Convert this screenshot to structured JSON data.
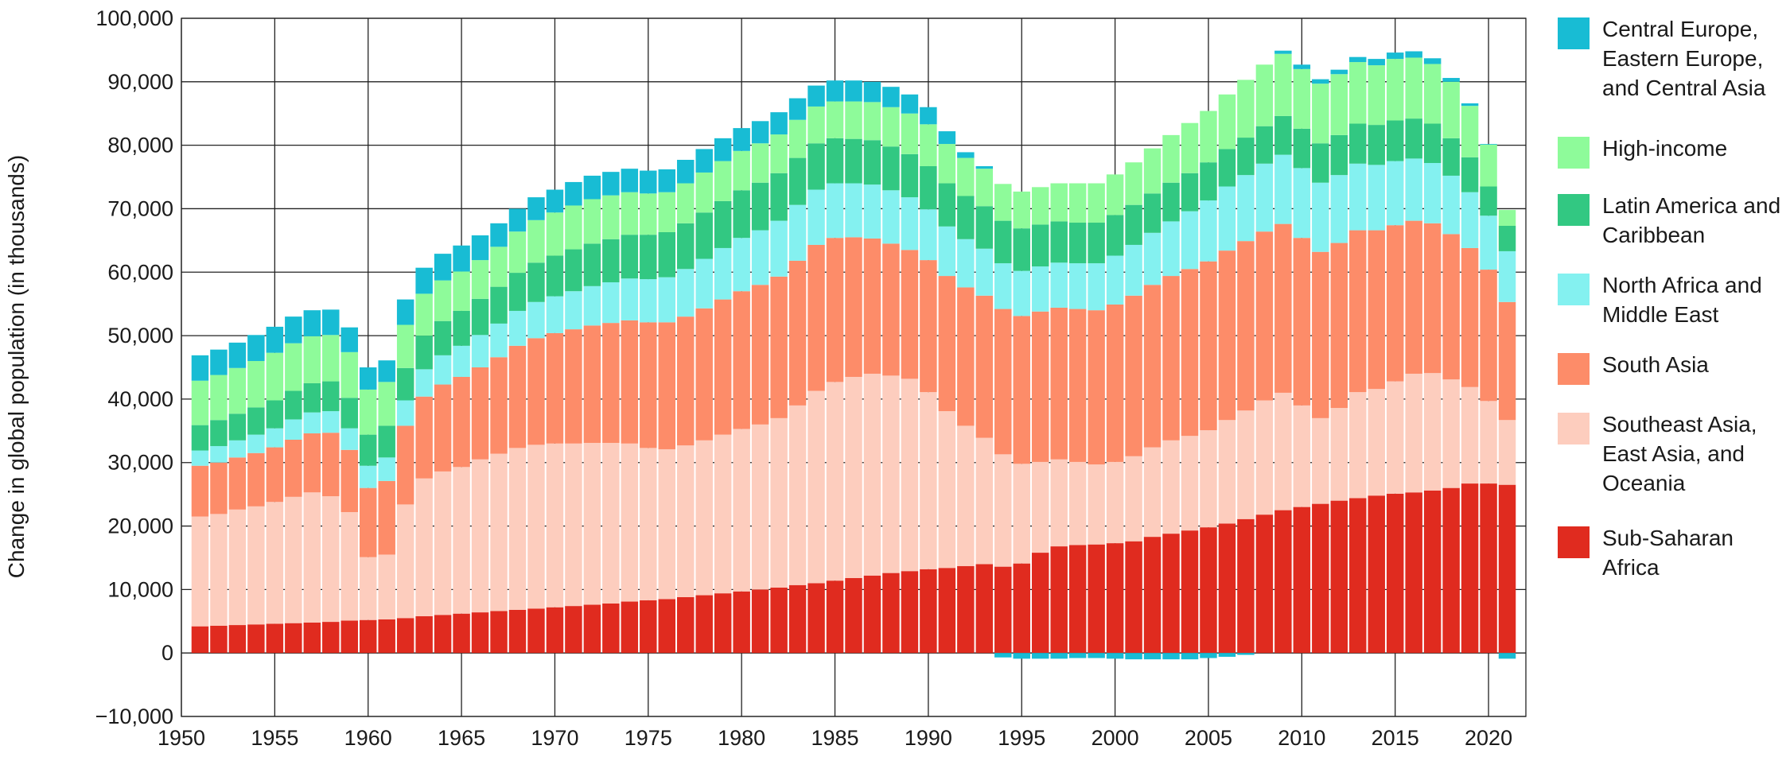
{
  "chart_data": {
    "type": "bar",
    "stacked": true,
    "title": "",
    "xlabel": "",
    "ylabel": "Change in global population (in thousands)",
    "ylim": [
      -10000,
      100000
    ],
    "yticks": [
      -10000,
      0,
      10000,
      20000,
      30000,
      40000,
      50000,
      60000,
      70000,
      80000,
      90000,
      100000
    ],
    "ytick_labels": [
      "−10,000",
      "0",
      "10,000",
      "20,000",
      "30,000",
      "40,000",
      "50,000",
      "60,000",
      "70,000",
      "80,000",
      "90,000",
      "100,000"
    ],
    "xlim": [
      1950,
      2022
    ],
    "xticks": [
      1950,
      1955,
      1960,
      1965,
      1970,
      1975,
      1980,
      1985,
      1990,
      1995,
      2000,
      2005,
      2010,
      2015,
      2020
    ],
    "grid": true,
    "legend_position": "right",
    "categories": [
      1951,
      1952,
      1953,
      1954,
      1955,
      1956,
      1957,
      1958,
      1959,
      1960,
      1961,
      1962,
      1963,
      1964,
      1965,
      1966,
      1967,
      1968,
      1969,
      1970,
      1971,
      1972,
      1973,
      1974,
      1975,
      1976,
      1977,
      1978,
      1979,
      1980,
      1981,
      1982,
      1983,
      1984,
      1985,
      1986,
      1987,
      1988,
      1989,
      1990,
      1991,
      1992,
      1993,
      1994,
      1995,
      1996,
      1997,
      1998,
      1999,
      2000,
      2001,
      2002,
      2003,
      2004,
      2005,
      2006,
      2007,
      2008,
      2009,
      2010,
      2011,
      2012,
      2013,
      2014,
      2015,
      2016,
      2017,
      2018,
      2019,
      2020,
      2021
    ],
    "series": [
      {
        "name": "Sub-Saharan Africa",
        "color": "#e02b1f",
        "values": [
          4200,
          4300,
          4400,
          4500,
          4600,
          4700,
          4800,
          4900,
          5100,
          5200,
          5300,
          5500,
          5800,
          6000,
          6200,
          6400,
          6600,
          6800,
          7000,
          7200,
          7400,
          7600,
          7800,
          8100,
          8300,
          8500,
          8800,
          9100,
          9400,
          9700,
          10000,
          10300,
          10700,
          11000,
          11400,
          11800,
          12200,
          12600,
          12900,
          13200,
          13400,
          13700,
          14000,
          13600,
          14100,
          15800,
          16800,
          17000,
          17100,
          17300,
          17600,
          18300,
          18800,
          19300,
          19800,
          20400,
          21100,
          21800,
          22500,
          23000,
          23500,
          24000,
          24400,
          24800,
          25100,
          25300,
          25600,
          26000,
          26700,
          26700,
          26500
        ]
      },
      {
        "name": "Southeast Asia, East Asia, and Oceania",
        "color": "#fdcdbe",
        "values": [
          17300,
          17600,
          18200,
          18600,
          19200,
          19900,
          20500,
          19800,
          17100,
          9900,
          10200,
          17900,
          21700,
          22600,
          23100,
          24100,
          24800,
          25500,
          25800,
          25800,
          25600,
          25500,
          25300,
          24900,
          24000,
          23600,
          23900,
          24400,
          25000,
          25600,
          26000,
          26700,
          28300,
          30300,
          31300,
          31700,
          31800,
          31100,
          30300,
          27900,
          24700,
          22100,
          19900,
          17700,
          15700,
          14300,
          13700,
          13100,
          12600,
          12800,
          13400,
          14100,
          14700,
          14900,
          15300,
          16300,
          17100,
          18000,
          18500,
          16000,
          13500,
          14600,
          16700,
          16800,
          17700,
          18700,
          18500,
          17100,
          15200,
          13000,
          10200
        ]
      },
      {
        "name": "South Asia",
        "color": "#fd8c69",
        "values": [
          8000,
          8100,
          8200,
          8400,
          8600,
          9000,
          9300,
          10000,
          9800,
          10900,
          11600,
          12400,
          12900,
          13700,
          14200,
          14500,
          15200,
          16100,
          16800,
          17400,
          18000,
          18500,
          18900,
          19400,
          19800,
          20000,
          20300,
          20800,
          21300,
          21700,
          22000,
          22300,
          22800,
          23000,
          22700,
          22000,
          21300,
          20800,
          20300,
          20800,
          21300,
          21800,
          22400,
          22900,
          23300,
          23700,
          23900,
          24100,
          24300,
          24800,
          25300,
          25600,
          25900,
          26300,
          26600,
          26700,
          26700,
          26600,
          26600,
          26400,
          26200,
          26000,
          25500,
          25000,
          24600,
          24100,
          23600,
          22900,
          21900,
          20700,
          18600
        ]
      },
      {
        "name": "North Africa and Middle East",
        "color": "#84f1f0",
        "values": [
          2400,
          2600,
          2700,
          2900,
          3000,
          3200,
          3300,
          3400,
          3400,
          3500,
          3700,
          4000,
          4300,
          4600,
          4900,
          5100,
          5300,
          5500,
          5700,
          5800,
          6000,
          6200,
          6400,
          6600,
          6800,
          7100,
          7500,
          7800,
          8100,
          8400,
          8600,
          8800,
          8800,
          8700,
          8600,
          8500,
          8500,
          8400,
          8300,
          8000,
          7800,
          7600,
          7400,
          7200,
          7100,
          7100,
          7100,
          7200,
          7400,
          7700,
          8000,
          8200,
          8600,
          9100,
          9600,
          10100,
          10400,
          10700,
          10900,
          11000,
          10900,
          10700,
          10500,
          10300,
          10100,
          9800,
          9500,
          9200,
          8800,
          8500,
          8000
        ]
      },
      {
        "name": "Latin America and Caribbean",
        "color": "#32c882",
        "values": [
          4000,
          4100,
          4200,
          4300,
          4400,
          4500,
          4600,
          4700,
          4800,
          4900,
          5000,
          5100,
          5300,
          5400,
          5500,
          5700,
          5800,
          6000,
          6200,
          6400,
          6600,
          6700,
          6800,
          6900,
          7000,
          7100,
          7200,
          7300,
          7400,
          7500,
          7500,
          7500,
          7400,
          7300,
          7100,
          7000,
          7000,
          6900,
          6800,
          6800,
          6800,
          6800,
          6700,
          6700,
          6700,
          6600,
          6500,
          6400,
          6400,
          6400,
          6300,
          6200,
          6100,
          6000,
          6000,
          5900,
          5900,
          5900,
          6100,
          6200,
          6200,
          6300,
          6300,
          6300,
          6400,
          6300,
          6200,
          5900,
          5500,
          4600,
          4000
        ]
      },
      {
        "name": "High-income",
        "color": "#8efb9a",
        "values": [
          7000,
          7100,
          7200,
          7300,
          7500,
          7500,
          7400,
          7300,
          7200,
          7100,
          6900,
          6800,
          6600,
          6400,
          6200,
          6100,
          6300,
          6500,
          6700,
          6800,
          6900,
          7000,
          6900,
          6700,
          6500,
          6300,
          6300,
          6300,
          6300,
          6200,
          6200,
          6100,
          6000,
          5800,
          5800,
          5900,
          6000,
          6200,
          6400,
          6600,
          6200,
          6000,
          5900,
          5800,
          5800,
          5900,
          6000,
          6200,
          6200,
          6400,
          6700,
          7100,
          7500,
          7900,
          8100,
          8600,
          9100,
          9700,
          9800,
          9400,
          9400,
          9600,
          9700,
          9400,
          9700,
          9600,
          9400,
          8900,
          8100,
          6600,
          2500
        ]
      },
      {
        "name": "Central Europe, Eastern Europe, and Central Asia",
        "color": "#18bcd4",
        "values": [
          4000,
          4000,
          4000,
          4100,
          4100,
          4200,
          4100,
          4000,
          3900,
          3500,
          3400,
          4000,
          4100,
          4200,
          4100,
          3900,
          3700,
          3600,
          3600,
          3600,
          3700,
          3700,
          3700,
          3700,
          3600,
          3600,
          3700,
          3700,
          3600,
          3600,
          3500,
          3500,
          3400,
          3300,
          3300,
          3300,
          3200,
          3200,
          3000,
          2700,
          2000,
          900,
          400,
          -700,
          -900,
          -900,
          -900,
          -800,
          -800,
          -900,
          -1000,
          -1000,
          -1000,
          -1000,
          -800,
          -600,
          -300,
          0,
          500,
          700,
          700,
          700,
          800,
          1000,
          1000,
          1000,
          900,
          600,
          400,
          100,
          -900
        ]
      }
    ]
  },
  "legend": {
    "items": [
      {
        "label": "Central Europe, Eastern Europe, and Central Asia",
        "color": "#18bcd4"
      },
      {
        "label": "High-income",
        "color": "#8efb9a"
      },
      {
        "label": "Latin America and Caribbean",
        "color": "#32c882"
      },
      {
        "label": "North Africa and Middle East",
        "color": "#84f1f0"
      },
      {
        "label": "South Asia",
        "color": "#fd8c69"
      },
      {
        "label": "Southeast Asia, East Asia, and Oceania",
        "color": "#fdcdbe"
      },
      {
        "label": "Sub-Saharan Africa",
        "color": "#e02b1f"
      }
    ]
  }
}
